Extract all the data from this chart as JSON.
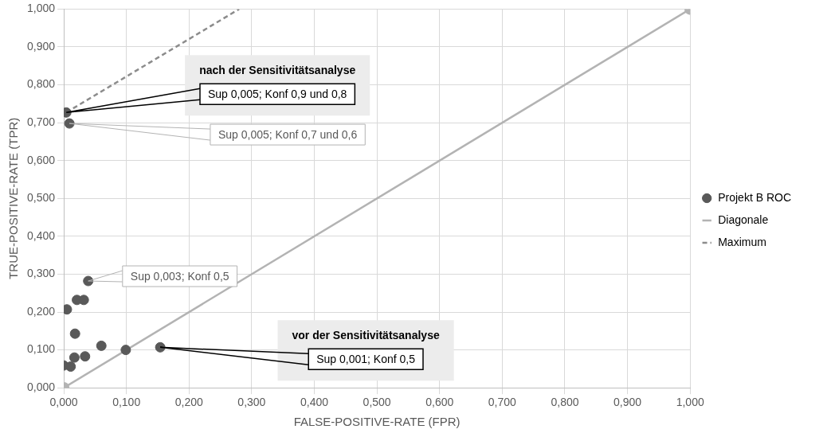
{
  "chart_data": {
    "type": "scatter",
    "xlabel": "FALSE-POSITIVE-RATE (FPR)",
    "ylabel": "TRUE-POSITIVE-RATE (TPR)",
    "xlim": [
      0,
      1
    ],
    "ylim": [
      0,
      1
    ],
    "xticks": [
      {
        "value": 0,
        "label": "0,000"
      },
      {
        "value": 0.1,
        "label": "0,100"
      },
      {
        "value": 0.2,
        "label": "0,200"
      },
      {
        "value": 0.3,
        "label": "0,300"
      },
      {
        "value": 0.4,
        "label": "0,400"
      },
      {
        "value": 0.5,
        "label": "0,500"
      },
      {
        "value": 0.6,
        "label": "0,600"
      },
      {
        "value": 0.7,
        "label": "0,700"
      },
      {
        "value": 0.8,
        "label": "0,800"
      },
      {
        "value": 0.9,
        "label": "0,900"
      },
      {
        "value": 1,
        "label": "1,000"
      }
    ],
    "yticks": [
      {
        "value": 0,
        "label": "0,000"
      },
      {
        "value": 0.1,
        "label": "0,100"
      },
      {
        "value": 0.2,
        "label": "0,200"
      },
      {
        "value": 0.3,
        "label": "0,300"
      },
      {
        "value": 0.4,
        "label": "0,400"
      },
      {
        "value": 0.5,
        "label": "0,500"
      },
      {
        "value": 0.6,
        "label": "0,600"
      },
      {
        "value": 0.7,
        "label": "0,700"
      },
      {
        "value": 0.8,
        "label": "0,800"
      },
      {
        "value": 0.9,
        "label": "0,900"
      },
      {
        "value": 1,
        "label": "1,000"
      }
    ],
    "grid": true,
    "legend": "right",
    "series": [
      {
        "name": "Projekt B ROC",
        "type": "scatter",
        "color": "#595959",
        "marker": "circle",
        "x": [
          0.004,
          0.009,
          0.039,
          0.021,
          0.032,
          0.005,
          0.018,
          0.017,
          0.034,
          0.0,
          0.011,
          0.06,
          0.099,
          0.154
        ],
        "values": [
          0.727,
          0.698,
          0.282,
          0.232,
          0.232,
          0.207,
          0.143,
          0.08,
          0.083,
          0.059,
          0.056,
          0.111,
          0.1,
          0.107
        ]
      },
      {
        "name": "Diagonale",
        "type": "line",
        "color": "#b3b3b3",
        "marker": "circle",
        "line_style": "solid",
        "x": [
          0,
          1
        ],
        "values": [
          0,
          1
        ]
      },
      {
        "name": "Maximum",
        "type": "line",
        "color": "#8c8c8c",
        "marker": "none",
        "line_style": "dashed",
        "x": [
          0.004,
          0.28
        ],
        "values": [
          0.727,
          1.0
        ]
      }
    ],
    "annotations": [
      "nach der Sensitivitätsanalyse",
      {
        "text": "Sup 0,005; Konf 0,9 und 0,8",
        "x": 0.004,
        "y": 0.727
      },
      {
        "text": "Sup 0,005; Konf 0,7 und 0,6",
        "x": 0.009,
        "y": 0.698
      },
      {
        "text": "Sup 0,003; Konf 0,5",
        "x": 0.039,
        "y": 0.282
      },
      "vor der Sensitivitätsanalyse",
      {
        "text": "Sup 0,001; Konf 0,5",
        "x": 0.154,
        "y": 0.107
      }
    ]
  }
}
